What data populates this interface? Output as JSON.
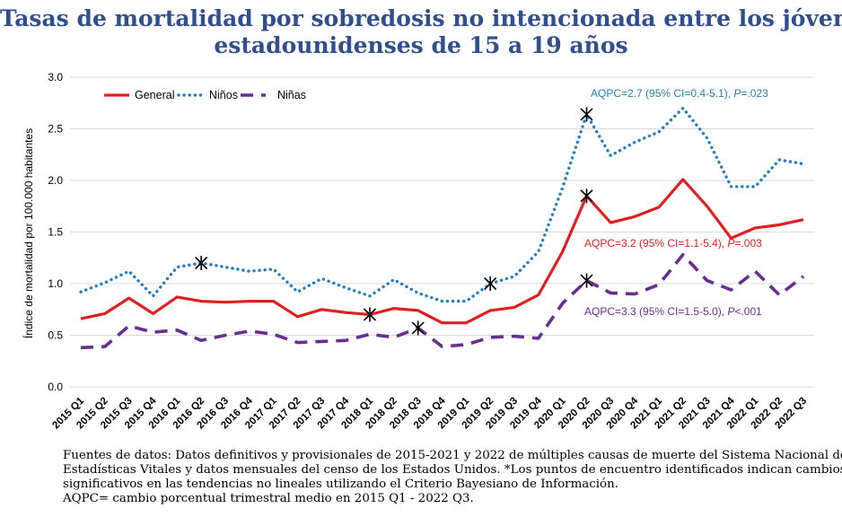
{
  "title_lines": [
    "Tasas de mortalidad por sobredosis no intencionada entre los jóvenes",
    "estadounidenses de 15 a 19 años"
  ],
  "footer_lines": [
    "Fuentes de datos: Datos definitivos y provisionales de 2015-2021 y 2022 de múltiples causas de muerte del Sistema Nacional de",
    "Estadísticas Vitales y datos mensuales del censo de los Estados Unidos. *Los puntos de encuentro identificados indican cambios",
    "significativos en las tendencias no lineales utilizando el Criterio Bayesiano de Información.",
    "AQPC= cambio porcentual trimestral medio en 2015 Q1 - 2022 Q3."
  ],
  "colors": {
    "title": "#2f4f8f",
    "general": "#e02020",
    "ninos": "#1f7fc0",
    "ninas": "#6a2d91"
  },
  "chart_data": {
    "type": "line",
    "ylabel": "Índice de mortalidad por 100.000 habitantes",
    "xlabel": "",
    "ylim": [
      0,
      3.0
    ],
    "yticks": [
      "0.0",
      "0.5",
      "1.0",
      "1.5",
      "2.0",
      "2.5",
      "3.0"
    ],
    "legend_position": "top-left",
    "categories": [
      "2015 Q1",
      "2015 Q2",
      "2015 Q3",
      "2015 Q4",
      "2016 Q1",
      "2016 Q2",
      "2016 Q3",
      "2016 Q4",
      "2017 Q1",
      "2017 Q2",
      "2017 Q3",
      "2017 Q4",
      "2018 Q1",
      "2018 Q2",
      "2018 Q3",
      "2018 Q4",
      "2019 Q1",
      "2019 Q2",
      "2019 Q3",
      "2019 Q4",
      "2020 Q1",
      "2020 Q2",
      "2020 Q3",
      "2020 Q4",
      "2021 Q1",
      "2021 Q2",
      "2021 Q3",
      "2021 Q4",
      "2022 Q1",
      "2022 Q2",
      "2022 Q3"
    ],
    "series": [
      {
        "name": "General",
        "style": "solid",
        "color": "#e02020",
        "values": [
          0.66,
          0.71,
          0.86,
          0.71,
          0.87,
          0.83,
          0.82,
          0.83,
          0.83,
          0.68,
          0.75,
          0.72,
          0.7,
          0.76,
          0.74,
          0.62,
          0.62,
          0.74,
          0.77,
          0.89,
          1.31,
          1.85,
          1.59,
          1.65,
          1.74,
          2.01,
          1.75,
          1.44,
          1.54,
          1.57,
          1.62
        ],
        "joinpoints": [
          12,
          21
        ]
      },
      {
        "name": "Niños",
        "style": "dotted",
        "color": "#1f7fc0",
        "values": [
          0.92,
          1.01,
          1.12,
          0.88,
          1.16,
          1.2,
          1.16,
          1.12,
          1.14,
          0.92,
          1.05,
          0.96,
          0.88,
          1.04,
          0.91,
          0.83,
          0.83,
          1.0,
          1.07,
          1.31,
          1.93,
          2.64,
          2.24,
          2.37,
          2.47,
          2.7,
          2.41,
          1.94,
          1.94,
          2.2,
          2.16
        ],
        "joinpoints": [
          5,
          17,
          21
        ]
      },
      {
        "name": "Niñas",
        "style": "dashed",
        "color": "#6a2d91",
        "values": [
          0.38,
          0.39,
          0.59,
          0.53,
          0.55,
          0.45,
          0.5,
          0.54,
          0.51,
          0.43,
          0.44,
          0.45,
          0.51,
          0.48,
          0.57,
          0.39,
          0.41,
          0.48,
          0.49,
          0.47,
          0.81,
          1.03,
          0.91,
          0.9,
          0.99,
          1.28,
          1.03,
          0.94,
          1.12,
          0.89,
          1.07
        ],
        "joinpoints": [
          14,
          21
        ]
      }
    ],
    "annotations": [
      {
        "series": "Niños",
        "text": "AQPC=2.7 (95% CI=0.4-5.1), ",
        "p": "P",
        "ptext": "=.023"
      },
      {
        "series": "General",
        "text": "AQPC=3.2 (95% CI=1.1-5.4), ",
        "p": "P",
        "ptext": "=.003"
      },
      {
        "series": "Niñas",
        "text": "AQPC=3.3 (95% CI=1.5-5.0), ",
        "p": "P",
        "ptext": "<.001"
      }
    ]
  }
}
